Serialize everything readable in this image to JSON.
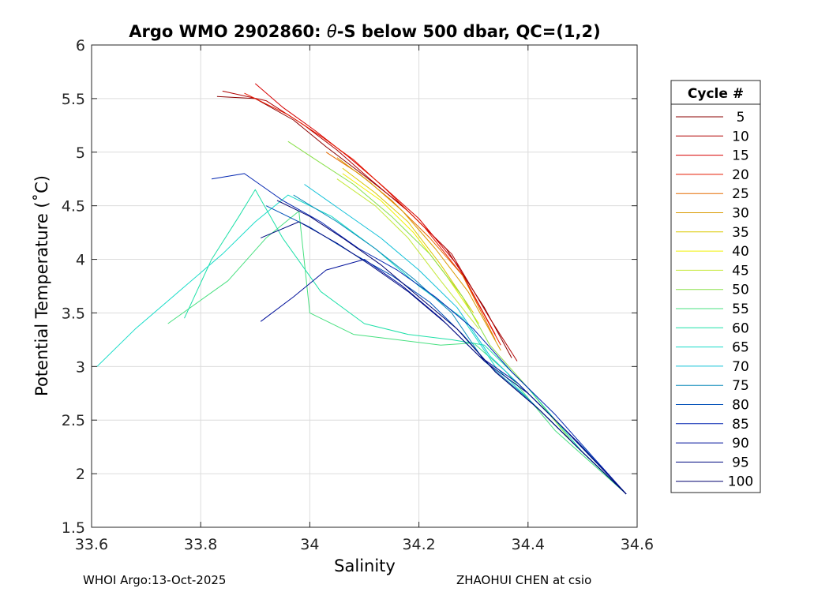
{
  "chart_data": {
    "type": "line",
    "title": "Argo WMO 2902860: θ-S below 500 dbar,  QC=(1,2)",
    "title_parts": {
      "prefix": "Argo WMO 2902860: ",
      "theta": "θ",
      "suffix": "-S below 500 dbar,  QC=(1,2)"
    },
    "xlabel": "Salinity",
    "ylabel": "Potential Temperature (˚C)",
    "xlim": [
      33.6,
      34.6
    ],
    "ylim": [
      1.5,
      6
    ],
    "xticks": [
      33.6,
      33.8,
      34,
      34.2,
      34.4,
      34.6
    ],
    "xtick_labels": [
      "33.6",
      "33.8",
      "34",
      "34.2",
      "34.4",
      "34.6"
    ],
    "yticks": [
      1.5,
      2,
      2.5,
      3,
      3.5,
      4,
      4.5,
      5,
      5.5,
      6
    ],
    "ytick_labels": [
      "1.5",
      "2",
      "2.5",
      "3",
      "3.5",
      "4",
      "4.5",
      "5",
      "5.5",
      "6"
    ],
    "grid": true,
    "legend": {
      "title": "Cycle #",
      "placement": "right",
      "entries": [
        {
          "label": "5",
          "color": "#8b0000"
        },
        {
          "label": "10",
          "color": "#b00000"
        },
        {
          "label": "15",
          "color": "#d60000"
        },
        {
          "label": "20",
          "color": "#e81a00"
        },
        {
          "label": "25",
          "color": "#e66a00"
        },
        {
          "label": "30",
          "color": "#d99a00"
        },
        {
          "label": "35",
          "color": "#dcc800"
        },
        {
          "label": "40",
          "color": "#f0f000"
        },
        {
          "label": "45",
          "color": "#c4e838"
        },
        {
          "label": "50",
          "color": "#88e048"
        },
        {
          "label": "55",
          "color": "#48e080"
        },
        {
          "label": "60",
          "color": "#1ee0a8"
        },
        {
          "label": "65",
          "color": "#18dcc8"
        },
        {
          "label": "70",
          "color": "#10c0d8"
        },
        {
          "label": "75",
          "color": "#0888b8"
        },
        {
          "label": "80",
          "color": "#0050b8"
        },
        {
          "label": "85",
          "color": "#0024b0"
        },
        {
          "label": "90",
          "color": "#00109a"
        },
        {
          "label": "95",
          "color": "#000c80"
        },
        {
          "label": "100",
          "color": "#00006e"
        }
      ]
    },
    "series": [
      {
        "name": "5",
        "color": "#8b0000",
        "x": [
          33.83,
          33.9,
          33.97,
          34.03,
          34.1,
          34.17,
          34.25,
          34.32,
          34.37
        ],
        "y": [
          5.52,
          5.5,
          5.3,
          5.05,
          4.78,
          4.5,
          4.1,
          3.55,
          3.08
        ]
      },
      {
        "name": "10",
        "color": "#b00000",
        "x": [
          33.84,
          33.92,
          33.99,
          34.05,
          34.11,
          34.18,
          34.26,
          34.33,
          34.38
        ],
        "y": [
          5.57,
          5.48,
          5.25,
          5.02,
          4.75,
          4.45,
          4.05,
          3.45,
          3.05
        ]
      },
      {
        "name": "15",
        "color": "#d60000",
        "x": [
          33.9,
          33.95,
          34.01,
          34.07,
          34.13,
          34.2,
          34.27,
          34.34
        ],
        "y": [
          5.64,
          5.42,
          5.2,
          4.96,
          4.7,
          4.38,
          3.95,
          3.3
        ]
      },
      {
        "name": "20",
        "color": "#e81a00",
        "x": [
          33.88,
          33.96,
          34.02,
          34.08,
          34.14,
          34.21,
          34.28,
          34.35
        ],
        "y": [
          5.55,
          5.35,
          5.15,
          4.93,
          4.65,
          4.3,
          3.85,
          3.2
        ]
      },
      {
        "name": "25",
        "color": "#e66a00",
        "x": [
          34.03,
          34.09,
          34.15,
          34.22,
          34.28,
          34.34
        ],
        "y": [
          5.0,
          4.8,
          4.55,
          4.2,
          3.85,
          3.25
        ]
      },
      {
        "name": "30",
        "color": "#d99a00",
        "x": [
          34.05,
          34.11,
          34.17,
          34.23,
          34.29,
          34.35
        ],
        "y": [
          4.95,
          4.72,
          4.45,
          4.1,
          3.7,
          3.15
        ]
      },
      {
        "name": "35",
        "color": "#dcc800",
        "x": [
          34.06,
          34.12,
          34.18,
          34.24,
          34.3
        ],
        "y": [
          4.85,
          4.62,
          4.35,
          3.95,
          3.5
        ]
      },
      {
        "name": "40",
        "color": "#f0f000",
        "x": [
          34.06,
          34.13,
          34.19,
          34.25,
          34.31
        ],
        "y": [
          4.8,
          4.55,
          4.25,
          3.85,
          3.4
        ]
      },
      {
        "name": "45",
        "color": "#c4e838",
        "x": [
          34.05,
          34.12,
          34.18,
          34.24,
          34.31
        ],
        "y": [
          4.75,
          4.5,
          4.2,
          3.8,
          3.35
        ]
      },
      {
        "name": "50",
        "color": "#88e048",
        "x": [
          33.96,
          34.02,
          34.08,
          34.15,
          34.22,
          34.28,
          34.33,
          34.4,
          34.48,
          34.58
        ],
        "y": [
          5.1,
          4.9,
          4.7,
          4.4,
          4.05,
          3.65,
          3.2,
          2.8,
          2.3,
          1.81
        ]
      },
      {
        "name": "55",
        "color": "#48e080",
        "x": [
          33.74,
          33.85,
          33.92,
          33.98,
          34.0,
          34.08,
          34.16,
          34.24,
          34.3,
          34.36,
          34.45,
          34.58
        ],
        "y": [
          3.4,
          3.8,
          4.2,
          4.45,
          3.5,
          3.3,
          3.25,
          3.2,
          3.22,
          2.95,
          2.4,
          1.81
        ]
      },
      {
        "name": "60",
        "color": "#1ee0a8",
        "x": [
          33.77,
          33.82,
          33.87,
          33.9,
          33.95,
          34.02,
          34.1,
          34.18,
          34.26,
          34.32,
          34.4,
          34.5,
          34.58
        ],
        "y": [
          3.45,
          4.0,
          4.4,
          4.65,
          4.2,
          3.7,
          3.4,
          3.3,
          3.25,
          3.2,
          2.8,
          2.2,
          1.81
        ]
      },
      {
        "name": "65",
        "color": "#18dcc8",
        "x": [
          33.61,
          33.68,
          33.76,
          33.84,
          33.9,
          33.96,
          34.04,
          34.12,
          34.2,
          34.28,
          34.34,
          34.42,
          34.5,
          34.58
        ],
        "y": [
          3.0,
          3.35,
          3.7,
          4.05,
          4.35,
          4.6,
          4.4,
          4.1,
          3.75,
          3.45,
          3.0,
          2.6,
          2.2,
          1.81
        ]
      },
      {
        "name": "70",
        "color": "#10c0d8",
        "x": [
          33.99,
          34.06,
          34.13,
          34.2,
          34.27,
          34.33,
          34.41,
          34.5,
          34.58
        ],
        "y": [
          4.7,
          4.45,
          4.2,
          3.9,
          3.55,
          3.1,
          2.7,
          2.25,
          1.81
        ]
      },
      {
        "name": "75",
        "color": "#0888b8",
        "x": [
          33.97,
          34.05,
          34.12,
          34.19,
          34.26,
          34.32,
          34.4,
          34.49,
          34.58
        ],
        "y": [
          4.6,
          4.35,
          4.1,
          3.82,
          3.5,
          3.05,
          2.7,
          2.25,
          1.81
        ]
      },
      {
        "name": "80",
        "color": "#0050b8",
        "x": [
          33.92,
          34.0,
          34.08,
          34.15,
          34.22,
          34.28,
          34.34,
          34.42,
          34.5,
          34.58
        ],
        "y": [
          4.5,
          4.3,
          4.05,
          3.85,
          3.6,
          3.3,
          2.95,
          2.6,
          2.2,
          1.81
        ]
      },
      {
        "name": "85",
        "color": "#0024b0",
        "x": [
          33.82,
          33.88,
          33.95,
          34.02,
          34.09,
          34.16,
          34.23,
          34.3,
          34.37,
          34.45,
          34.52,
          34.58
        ],
        "y": [
          4.75,
          4.8,
          4.55,
          4.35,
          4.1,
          3.9,
          3.65,
          3.35,
          2.95,
          2.55,
          2.15,
          1.81
        ]
      },
      {
        "name": "90",
        "color": "#00109a",
        "x": [
          33.91,
          33.97,
          34.03,
          34.1,
          34.17,
          34.24,
          34.31,
          34.38,
          34.46,
          34.58
        ],
        "y": [
          3.42,
          3.65,
          3.9,
          4.0,
          3.75,
          3.45,
          3.1,
          2.85,
          2.45,
          1.81
        ]
      },
      {
        "name": "95",
        "color": "#000c80",
        "x": [
          33.91,
          33.98,
          34.05,
          34.11,
          34.18,
          34.25,
          34.32,
          34.4,
          34.49,
          34.58
        ],
        "y": [
          4.2,
          4.35,
          4.15,
          3.95,
          3.7,
          3.4,
          3.05,
          2.75,
          2.3,
          1.81
        ]
      },
      {
        "name": "100",
        "color": "#00006e",
        "x": [
          33.94,
          34.0,
          34.06,
          34.13,
          34.2,
          34.27,
          34.34,
          34.42,
          34.5,
          34.58
        ],
        "y": [
          4.55,
          4.4,
          4.2,
          3.95,
          3.65,
          3.35,
          2.95,
          2.6,
          2.2,
          1.81
        ]
      }
    ]
  },
  "footer": {
    "left": "WHOI Argo:13-Oct-2025",
    "right": "ZHAOHUI CHEN at csio"
  }
}
